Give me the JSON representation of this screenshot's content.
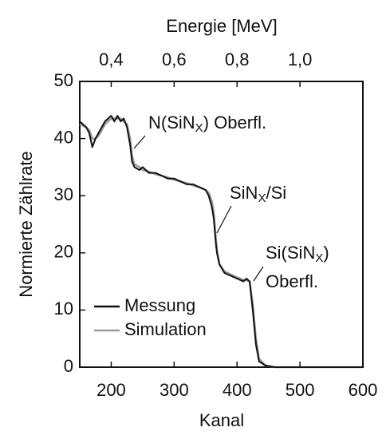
{
  "chart_data": {
    "type": "line",
    "title": "Energie [MeV]",
    "xlabel": "Kanal",
    "ylabel": "Normierte Zählrate",
    "x": [
      150,
      160,
      165,
      170,
      175,
      180,
      185,
      190,
      195,
      200,
      205,
      210,
      215,
      220,
      225,
      230,
      233,
      237,
      245,
      250,
      260,
      270,
      280,
      290,
      300,
      310,
      320,
      330,
      340,
      350,
      355,
      360,
      363,
      366,
      368,
      372,
      380,
      390,
      400,
      410,
      415,
      420,
      425,
      430,
      435,
      445,
      460,
      500,
      600
    ],
    "series": [
      {
        "name": "Messung",
        "color": "#111111",
        "values": [
          43,
          42,
          41,
          38.5,
          40,
          41,
          42,
          43,
          43.5,
          44,
          43,
          44,
          43,
          43.5,
          42,
          39,
          36,
          35,
          34.5,
          35,
          34,
          34,
          33.5,
          33,
          33,
          32.5,
          32,
          32,
          31.5,
          31,
          30,
          28,
          26,
          22,
          20,
          18,
          16.5,
          16,
          15.5,
          15,
          15.5,
          15,
          10,
          4,
          1,
          0.3,
          0,
          0,
          0
        ]
      },
      {
        "name": "Simulation",
        "color": "#9a9a9a",
        "values": [
          42.5,
          42,
          41.5,
          40,
          40,
          40.5,
          41.5,
          42.5,
          43,
          43.5,
          43.5,
          43.5,
          43.5,
          43,
          42.5,
          40,
          37,
          35.5,
          35,
          34.5,
          34.2,
          33.8,
          33.5,
          33.2,
          32.8,
          32.5,
          32.2,
          31.8,
          31.5,
          31,
          30.5,
          29,
          27,
          23,
          20.5,
          18,
          16.8,
          16.2,
          15.7,
          15.3,
          15.2,
          15,
          11,
          5,
          1.5,
          0.3,
          0,
          0,
          0
        ]
      }
    ],
    "xlim": [
      150,
      600
    ],
    "xticks": [
      200,
      300,
      400,
      500,
      600
    ],
    "ylim": [
      0,
      50
    ],
    "yticks": [
      0,
      10,
      20,
      30,
      40,
      50
    ],
    "x2lim": [
      0.3,
      1.2
    ],
    "x2ticks": [
      {
        "value": 0.4,
        "label": "0,4"
      },
      {
        "value": 0.6,
        "label": "0,6"
      },
      {
        "value": 0.8,
        "label": "0,8"
      },
      {
        "value": 1.0,
        "label": "1,0"
      }
    ],
    "annotations": [
      {
        "text": [
          "N(SiN",
          "X",
          ") Oberfl."
        ]
      },
      {
        "text": [
          "SiN",
          "X",
          "/Si"
        ]
      },
      {
        "text": [
          "Si(SiN",
          "X",
          ")"
        ]
      },
      {
        "text": [
          "Oberfl."
        ]
      }
    ],
    "legend": "lower left",
    "grid": false
  }
}
